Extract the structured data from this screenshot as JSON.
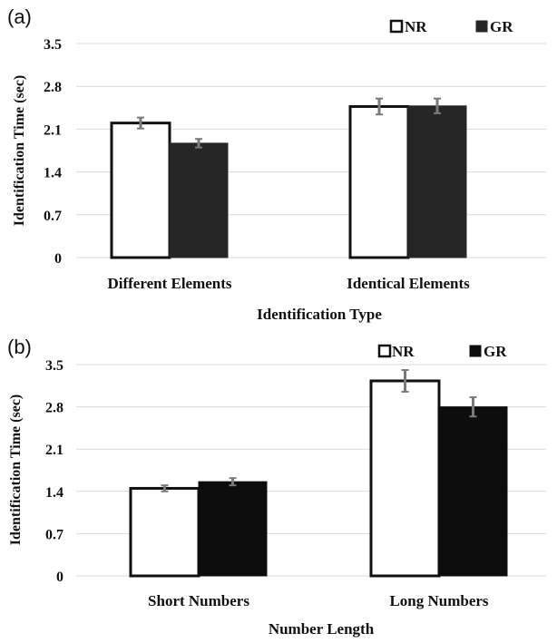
{
  "chart_data": [
    {
      "type": "bar",
      "panel_label": "(a)",
      "categories": [
        "Different Elements",
        "Identical Elements"
      ],
      "series": [
        {
          "name": "NR",
          "color": "#ffffff",
          "values": [
            2.2,
            2.47
          ],
          "errors": [
            0.09,
            0.13
          ]
        },
        {
          "name": "GR",
          "color": "#262626",
          "values": [
            1.87,
            2.48
          ],
          "errors": [
            0.07,
            0.12
          ]
        }
      ],
      "xlabel": "Identification Type",
      "ylabel": "Identification Time (sec)",
      "ylim": [
        0,
        3.5
      ],
      "yticks": [
        "0",
        "0.7",
        "1.4",
        "2.1",
        "2.8",
        "3.5"
      ],
      "grid": true,
      "legend_position": "top-right"
    },
    {
      "type": "bar",
      "panel_label": "(b)",
      "categories": [
        "Short Numbers",
        "Long Numbers"
      ],
      "series": [
        {
          "name": "NR",
          "color": "#ffffff",
          "values": [
            1.45,
            3.23
          ],
          "errors": [
            0.05,
            0.18
          ]
        },
        {
          "name": "GR",
          "color": "#0d0d0d",
          "values": [
            1.56,
            2.8
          ],
          "errors": [
            0.06,
            0.16
          ]
        }
      ],
      "xlabel": "Number Length",
      "ylabel": "Identification Time (sec)",
      "ylim": [
        0,
        3.5
      ],
      "yticks": [
        "0",
        "0.7",
        "1.4",
        "2.1",
        "2.8",
        "3.5"
      ],
      "grid": true,
      "legend_position": "top-right"
    }
  ]
}
